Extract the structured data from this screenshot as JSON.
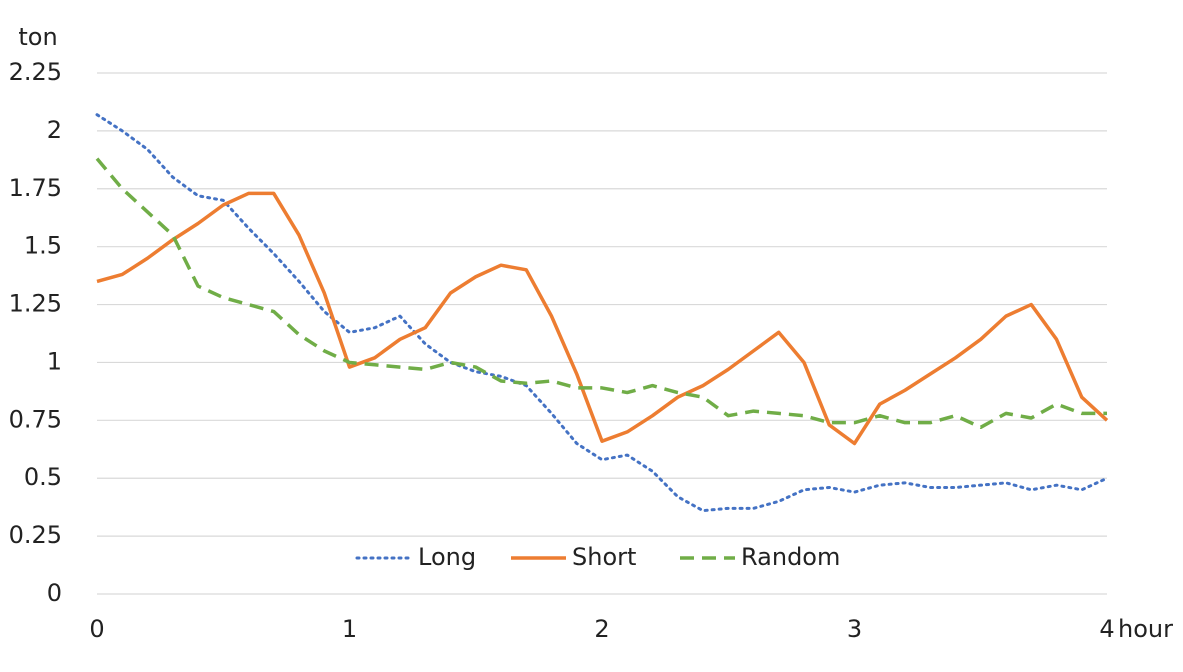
{
  "chart_data": {
    "type": "line",
    "y_label": "ton",
    "x_label": "hour",
    "x": [
      0,
      0.1,
      0.2,
      0.3,
      0.4,
      0.5,
      0.6,
      0.7,
      0.8,
      0.9,
      1.0,
      1.1,
      1.2,
      1.3,
      1.4,
      1.5,
      1.6,
      1.7,
      1.8,
      1.9,
      2.0,
      2.1,
      2.2,
      2.3,
      2.4,
      2.5,
      2.6,
      2.7,
      2.8,
      2.9,
      3.0,
      3.1,
      3.2,
      3.3,
      3.4,
      3.5,
      3.6,
      3.7,
      3.8,
      3.9,
      4.0
    ],
    "series": [
      {
        "name": "Long",
        "color": "#4472c4",
        "style": "dotted",
        "values": [
          2.07,
          2.0,
          1.92,
          1.8,
          1.72,
          1.7,
          1.58,
          1.47,
          1.35,
          1.22,
          1.13,
          1.15,
          1.2,
          1.08,
          1.0,
          0.96,
          0.94,
          0.9,
          0.78,
          0.65,
          0.58,
          0.6,
          0.53,
          0.42,
          0.36,
          0.37,
          0.37,
          0.4,
          0.45,
          0.46,
          0.44,
          0.47,
          0.48,
          0.46,
          0.46,
          0.47,
          0.48,
          0.45,
          0.47,
          0.45,
          0.5
        ]
      },
      {
        "name": "Short",
        "color": "#ed7d31",
        "style": "solid",
        "values": [
          1.35,
          1.38,
          1.45,
          1.53,
          1.6,
          1.68,
          1.73,
          1.73,
          1.55,
          1.3,
          0.98,
          1.02,
          1.1,
          1.15,
          1.3,
          1.37,
          1.42,
          1.4,
          1.2,
          0.95,
          0.66,
          0.7,
          0.77,
          0.85,
          0.9,
          0.97,
          1.05,
          1.13,
          1.0,
          0.73,
          0.65,
          0.82,
          0.88,
          0.95,
          1.02,
          1.1,
          1.2,
          1.25,
          1.1,
          0.85,
          0.75
        ]
      },
      {
        "name": "Random",
        "color": "#70ad47",
        "style": "dashed",
        "values": [
          1.88,
          1.75,
          1.65,
          1.55,
          1.33,
          1.28,
          1.25,
          1.22,
          1.12,
          1.05,
          1.0,
          0.99,
          0.98,
          0.97,
          1.0,
          0.98,
          0.92,
          0.91,
          0.92,
          0.89,
          0.89,
          0.87,
          0.9,
          0.87,
          0.85,
          0.77,
          0.79,
          0.78,
          0.77,
          0.74,
          0.74,
          0.77,
          0.74,
          0.74,
          0.77,
          0.72,
          0.78,
          0.76,
          0.82,
          0.78,
          0.78
        ]
      }
    ],
    "xlim": [
      0,
      4
    ],
    "xticks": [
      0,
      1,
      2,
      3,
      4
    ],
    "ylim": [
      0,
      2.25
    ],
    "yticks": [
      0,
      0.25,
      0.5,
      0.75,
      1,
      1.25,
      1.5,
      1.75,
      2,
      2.25
    ],
    "grid": true,
    "legend": "bottom"
  }
}
